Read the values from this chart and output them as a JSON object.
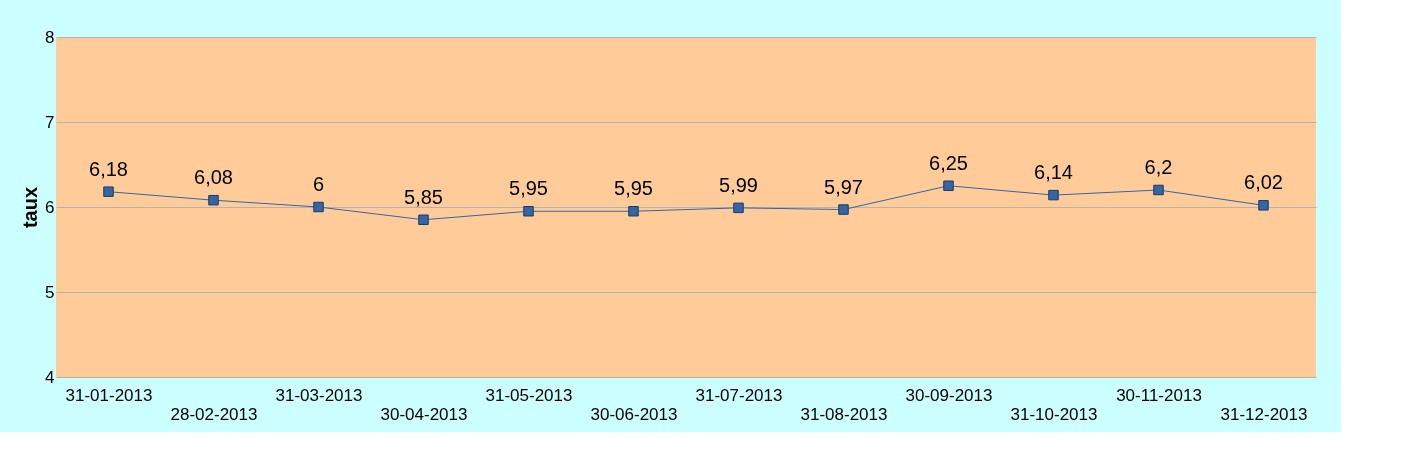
{
  "chart_data": {
    "type": "line",
    "ylabel": "taux",
    "categories": [
      "31-01-2013",
      "28-02-2013",
      "31-03-2013",
      "30-04-2013",
      "31-05-2013",
      "30-06-2013",
      "31-07-2013",
      "31-08-2013",
      "30-09-2013",
      "31-10-2013",
      "30-11-2013",
      "31-12-2013"
    ],
    "series": [
      {
        "color": "#3465a4",
        "values": [
          6.18,
          6.08,
          6.0,
          5.85,
          5.95,
          5.95,
          5.99,
          5.97,
          6.25,
          6.14,
          6.2,
          6.02
        ],
        "value_labels": [
          "6,18",
          "6,08",
          "6",
          "5,85",
          "5,95",
          "5,95",
          "5,99",
          "5,97",
          "6,25",
          "6,14",
          "6,2",
          "6,02"
        ]
      }
    ],
    "ylim": [
      4,
      8
    ],
    "yticks": [
      4,
      5,
      6,
      7,
      8
    ],
    "grid": "y",
    "marker": "square",
    "line_style": "solid"
  }
}
